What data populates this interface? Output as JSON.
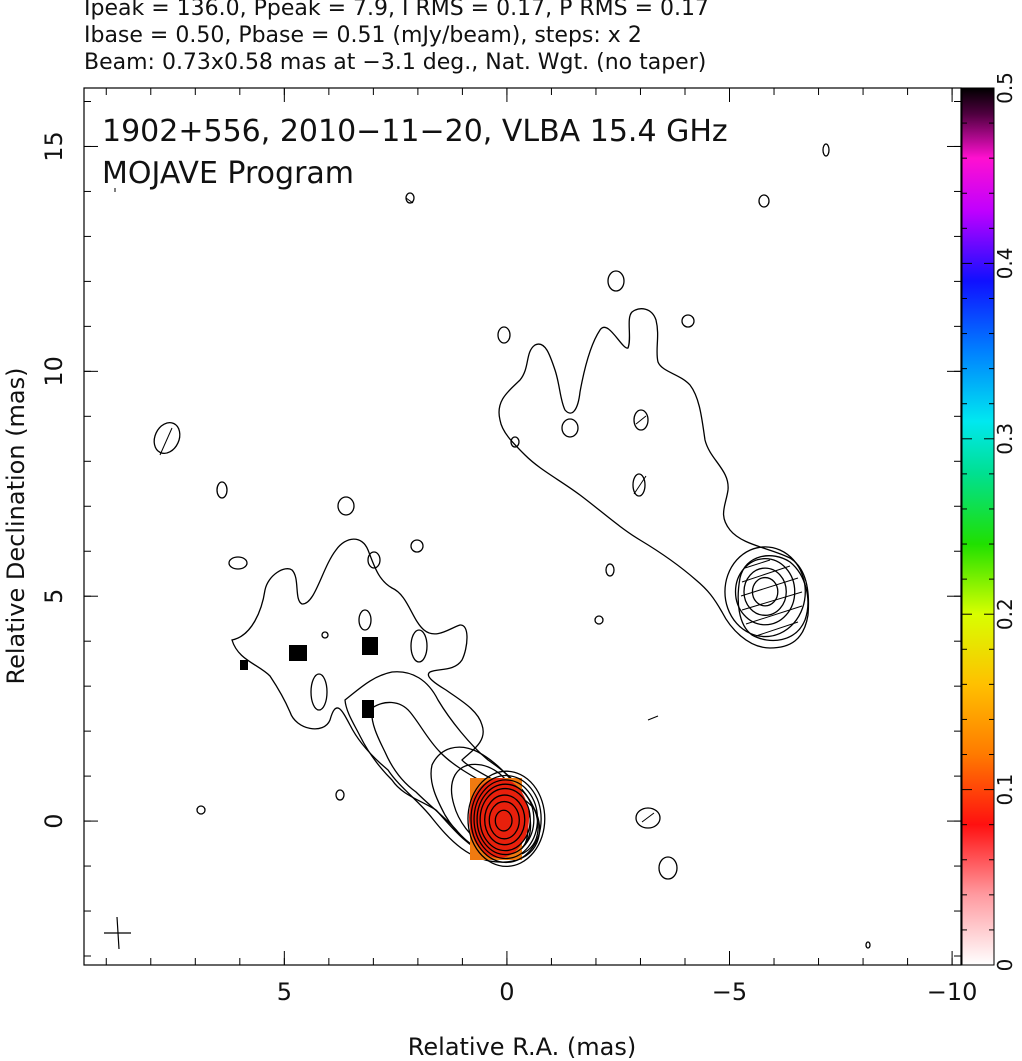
{
  "header": {
    "line1": "Ipeak = 136.0, Ppeak = 7.9, I RMS = 0.17, P RMS = 0.17",
    "line2": "Ibase = 0.50, Pbase = 0.51 (mJy/beam), steps: x 2",
    "line3": "Beam: 0.73x0.58 mas at −3.1 deg., Nat. Wgt. (no taper)"
  },
  "annotations": {
    "source_line": "1902+556, 2010−11−20, VLBA 15.4 GHz",
    "program_line": "MOJAVE Program"
  },
  "chart_data": {
    "type": "heatmap",
    "xlabel": "Relative R.A. (mas)",
    "ylabel": "Relative Declination (mas)",
    "xlim": [
      9.5,
      -10.2
    ],
    "ylim": [
      -3.2,
      16.3
    ],
    "x_ticks": [
      5,
      0,
      -5,
      -10
    ],
    "x_tick_labels": [
      "5",
      "0",
      "−5",
      "−10"
    ],
    "y_ticks": [
      0,
      5,
      10,
      15
    ],
    "y_tick_labels": [
      "0",
      "5",
      "10",
      "15"
    ],
    "colorbar": {
      "range": [
        0,
        0.5
      ],
      "ticks": [
        0,
        0.1,
        0.2,
        0.3,
        0.4,
        0.5
      ],
      "tick_labels": [
        "0",
        "0.1",
        "0.2",
        "0.3",
        "0.4",
        "0.5"
      ]
    },
    "core": {
      "x": 0.0,
      "y": 0.0,
      "contour_radii": [
        0.25,
        0.45,
        0.6,
        0.75,
        0.85,
        0.95,
        1.05,
        1.15
      ]
    },
    "knot": {
      "x": -5.8,
      "y": 5.1,
      "contour_radii": [
        0.3,
        0.5,
        0.7,
        0.95
      ]
    },
    "beam": {
      "x": 8.7,
      "y": -2.5,
      "major": 0.73,
      "minor": 0.58,
      "pa_deg": -3.1
    },
    "colors": {
      "core_fill": "#e8200c",
      "core_edge": "#f07a10",
      "marker": "#000000"
    }
  }
}
